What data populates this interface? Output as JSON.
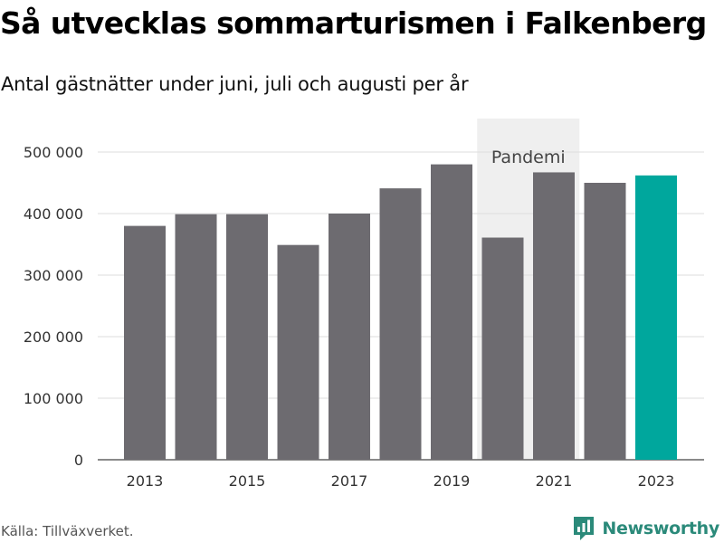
{
  "title": "Så utvecklas sommarturismen i Falkenberg",
  "subtitle": "Antal gästnätter under juni, juli och augusti per år",
  "source": "Källa: Tillväxverket.",
  "brand": {
    "name": "Newsworthy",
    "icon": "newsworthy-logo-icon",
    "color": "#2b8a7a"
  },
  "colors": {
    "bar": "#6d6b70",
    "highlight": "#00a79d",
    "grid": "#dddddd",
    "shade": "#efefef",
    "axis_text": "#333333",
    "annotation_text": "#444444"
  },
  "chart_data": {
    "type": "bar",
    "title": "Så utvecklas sommarturismen i Falkenberg",
    "subtitle": "Antal gästnätter under juni, juli och augusti per år",
    "categories": [
      "2013",
      "2014",
      "2015",
      "2016",
      "2017",
      "2018",
      "2019",
      "2020",
      "2021",
      "2022",
      "2023"
    ],
    "values": [
      380000,
      399000,
      399000,
      349000,
      400000,
      441000,
      480000,
      361000,
      467000,
      450000,
      462000
    ],
    "highlighted": "2023",
    "xticks": [
      "2013",
      "2015",
      "2017",
      "2019",
      "2021",
      "2023"
    ],
    "yticks": [
      0,
      100000,
      200000,
      300000,
      400000,
      500000
    ],
    "ytick_labels": [
      "0",
      "100 000",
      "200 000",
      "300 000",
      "400 000",
      "500 000"
    ],
    "ylim": [
      0,
      550000
    ],
    "grid": true,
    "xlabel": "",
    "ylabel": "",
    "annotations": [
      {
        "label": "Pandemi",
        "range": [
          "2020",
          "2021"
        ]
      }
    ]
  }
}
